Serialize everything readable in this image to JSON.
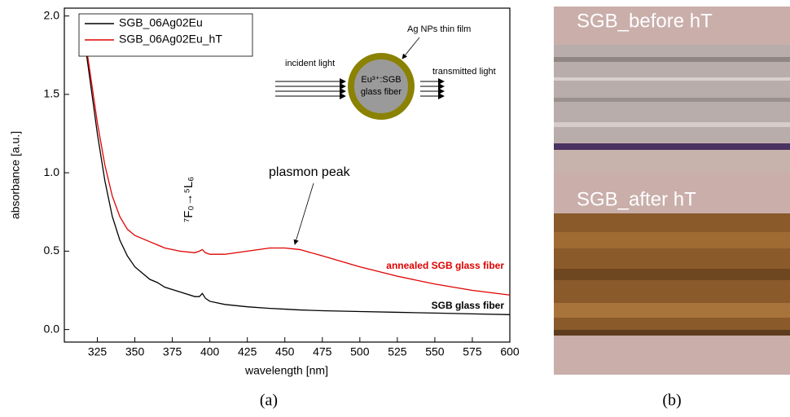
{
  "chart_data": {
    "type": "line",
    "x_label": "wavelength [nm]",
    "y_label": "absorbance [a.u.]",
    "x": [
      315,
      320,
      325,
      330,
      335,
      340,
      345,
      350,
      360,
      365,
      370,
      380,
      390,
      393,
      395,
      397,
      400,
      410,
      425,
      440,
      450,
      460,
      475,
      500,
      525,
      550,
      575,
      600
    ],
    "series": [
      {
        "name": "SGB_06Ag02Eu",
        "color": "#000000",
        "values": [
          1.95,
          1.6,
          1.25,
          0.95,
          0.72,
          0.57,
          0.47,
          0.4,
          0.32,
          0.3,
          0.27,
          0.24,
          0.21,
          0.21,
          0.23,
          0.2,
          0.18,
          0.16,
          0.145,
          0.135,
          0.13,
          0.125,
          0.12,
          0.115,
          0.11,
          0.105,
          0.1,
          0.095
        ]
      },
      {
        "name": "SGB_06Ag02Eu_hT",
        "color": "#e00000",
        "values": [
          1.97,
          1.65,
          1.32,
          1.05,
          0.85,
          0.72,
          0.64,
          0.6,
          0.56,
          0.54,
          0.52,
          0.5,
          0.49,
          0.5,
          0.51,
          0.49,
          0.48,
          0.48,
          0.5,
          0.52,
          0.52,
          0.51,
          0.47,
          0.4,
          0.34,
          0.29,
          0.25,
          0.22
        ]
      }
    ],
    "xlim": [
      303,
      600
    ],
    "ylim": [
      -0.08,
      2.05
    ],
    "xticks": [
      325,
      350,
      375,
      400,
      425,
      450,
      475,
      500,
      525,
      550,
      575,
      600
    ],
    "yticks": [
      {
        "value": 0,
        "label": "0.0"
      },
      0.5,
      {
        "value": 1,
        "label": "1.0"
      },
      1.5,
      {
        "value": 2,
        "label": "2.0"
      }
    ],
    "legend": "upper left",
    "annotations": {
      "peak": "plasmon peak",
      "annealed": "annealed SGB glass fiber",
      "plain": "SGB glass fiber",
      "transition": "⁷F₀→⁵L₆"
    },
    "inset": {
      "film": "Ag NPs thin film",
      "incident": "incident light",
      "transmitted": "transmitted light",
      "core": [
        "Eu³⁺:SGB",
        "glass fiber"
      ]
    },
    "panel_label": "(a)"
  },
  "photo": {
    "labels": [
      "SGB_before hT",
      "SGB_after hT"
    ],
    "panel_label": "(b)"
  }
}
